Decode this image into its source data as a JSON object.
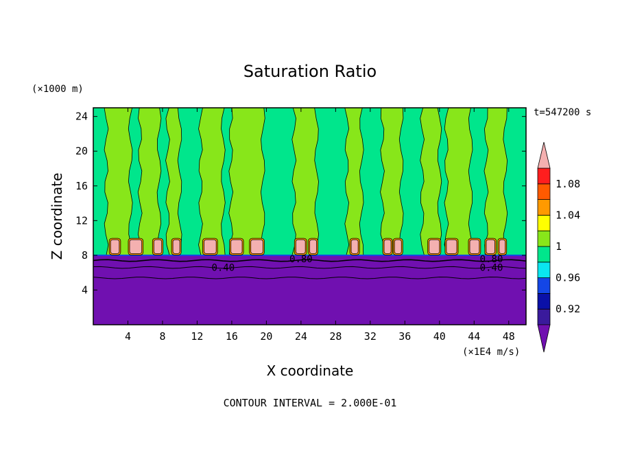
{
  "chart_data": {
    "type": "heatmap",
    "title": "Saturation Ratio",
    "xlabel": "X coordinate",
    "ylabel": "Z coordinate",
    "x_units": "(×1E4 m/s)",
    "y_units": "(×1000 m)",
    "time_label": "t=547200 s",
    "footer": "CONTOUR INTERVAL = 2.000E-01",
    "xlim": [
      0,
      50
    ],
    "ylim": [
      0,
      25
    ],
    "x_ticks": [
      4,
      8,
      12,
      16,
      20,
      24,
      28,
      32,
      36,
      40,
      44,
      48
    ],
    "y_ticks": [
      4,
      8,
      12,
      16,
      20,
      24
    ],
    "x_tick_labels": [
      "4",
      "8",
      "12",
      "16",
      "20",
      "24",
      "28",
      "32",
      "36",
      "40",
      "44",
      "48"
    ],
    "y_tick_labels": [
      "4",
      "8",
      "12",
      "16",
      "20",
      "24"
    ],
    "colorbar": {
      "levels": [
        0.9,
        0.92,
        0.94,
        0.96,
        0.98,
        1.0,
        1.02,
        1.04,
        1.06,
        1.08,
        1.1
      ],
      "labels": [
        "0.92",
        "0.96",
        "1",
        "1.04",
        "1.08"
      ],
      "label_values": [
        0.92,
        0.96,
        1.0,
        1.04,
        1.08
      ],
      "colors": [
        "#3a1a9c",
        "#0a10a8",
        "#1446e6",
        "#0ae6f0",
        "#00e68c",
        "#88e61a",
        "#ffff00",
        "#ff9a00",
        "#ff5a00",
        "#ff1e1e"
      ],
      "under_color": "#7010b0",
      "over_color": "#f4b0b0"
    },
    "regions": {
      "background_color": "#00e68c",
      "dry_layer_top": 8,
      "dry_layer_color": "#7010b0",
      "moist_columns": [
        {
          "x0": 1.5,
          "x1": 4.3
        },
        {
          "x0": 5.4,
          "x1": 7.6
        },
        {
          "x0": 8.6,
          "x1": 10.0
        },
        {
          "x0": 12.4,
          "x1": 15.0
        },
        {
          "x0": 15.9,
          "x1": 19.6
        },
        {
          "x0": 23.2,
          "x1": 25.8
        },
        {
          "x0": 29.3,
          "x1": 31.0
        },
        {
          "x0": 33.4,
          "x1": 35.6
        },
        {
          "x0": 38.0,
          "x1": 40.0
        },
        {
          "x0": 40.8,
          "x1": 43.6
        },
        {
          "x0": 45.4,
          "x1": 47.6
        }
      ],
      "cloud_bases": [
        {
          "x0": 2.0,
          "x1": 3.0
        },
        {
          "x0": 4.2,
          "x1": 5.6
        },
        {
          "x0": 7.0,
          "x1": 7.9
        },
        {
          "x0": 9.2,
          "x1": 10.0
        },
        {
          "x0": 12.8,
          "x1": 14.2
        },
        {
          "x0": 15.9,
          "x1": 17.2
        },
        {
          "x0": 18.2,
          "x1": 19.6
        },
        {
          "x0": 23.4,
          "x1": 24.5
        },
        {
          "x0": 25.0,
          "x1": 25.8
        },
        {
          "x0": 29.8,
          "x1": 30.6
        },
        {
          "x0": 33.6,
          "x1": 34.4
        },
        {
          "x0": 34.8,
          "x1": 35.6
        },
        {
          "x0": 38.8,
          "x1": 40.0
        },
        {
          "x0": 40.8,
          "x1": 42.0
        },
        {
          "x0": 43.5,
          "x1": 44.6
        },
        {
          "x0": 45.4,
          "x1": 46.4
        },
        {
          "x0": 46.9,
          "x1": 47.6
        }
      ]
    },
    "contour_labels": [
      {
        "text": "0.40",
        "x": 15.0,
        "y": 6.6
      },
      {
        "text": "0.80",
        "x": 24.0,
        "y": 7.6
      },
      {
        "text": "0.80",
        "x": 46.0,
        "y": 7.6
      },
      {
        "text": "0.40",
        "x": 46.0,
        "y": 6.6
      }
    ]
  }
}
